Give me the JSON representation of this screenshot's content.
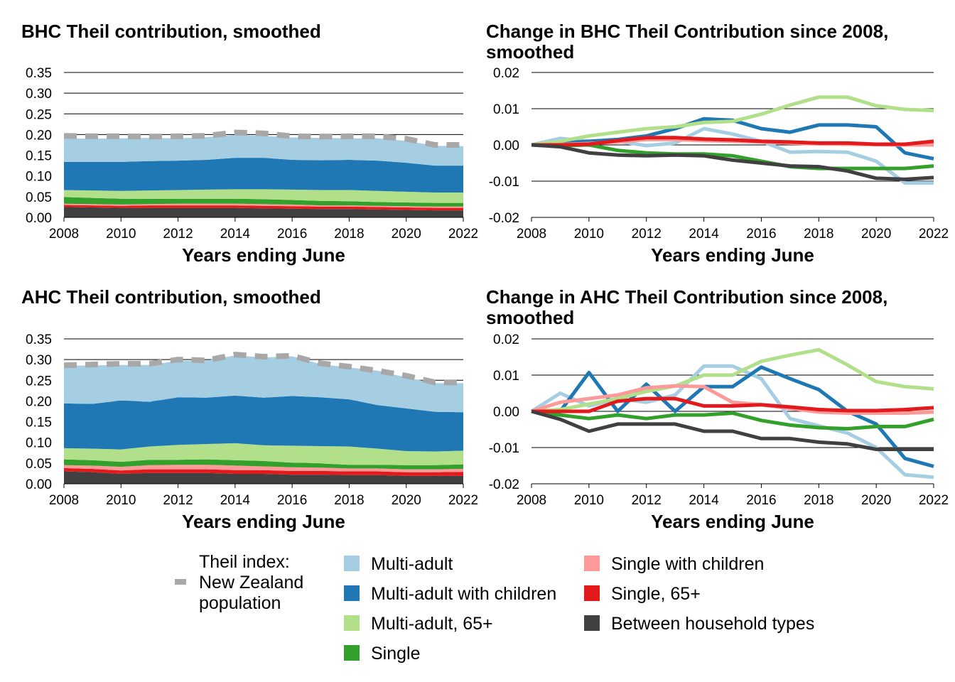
{
  "legend": {
    "theil_line1": "Theil index:",
    "theil_line2": "New Zealand",
    "theil_line3": "population",
    "items": [
      {
        "label": "Multi-adult",
        "color": "#a6cee3"
      },
      {
        "label": "Multi-adult with children",
        "color": "#1f78b4"
      },
      {
        "label": "Multi-adult, 65+",
        "color": "#b2df8a"
      },
      {
        "label": "Single",
        "color": "#33a02c"
      },
      {
        "label": "Single with children",
        "color": "#fb9a99"
      },
      {
        "label": "Single, 65+",
        "color": "#e31a1c"
      },
      {
        "label": "Between household types",
        "color": "#404040"
      }
    ],
    "theil_color": "#a8a8a8"
  },
  "chart_data": [
    {
      "type": "area",
      "title": "BHC Theil contribution, smoothed",
      "xlabel": "Years ending June",
      "ylabel": "",
      "ylim": [
        0,
        0.35
      ],
      "yticks": [
        "0.00",
        "0.05",
        "0.10",
        "0.15",
        "0.20",
        "0.25",
        "0.30",
        "0.35"
      ],
      "xticks": [
        "2008",
        "2010",
        "2012",
        "2014",
        "2016",
        "2018",
        "2020",
        "2022"
      ],
      "grid": "horizontal",
      "x": [
        2008,
        2009,
        2010,
        2011,
        2012,
        2013,
        2014,
        2015,
        2016,
        2017,
        2018,
        2019,
        2020,
        2021,
        2022
      ],
      "series": [
        {
          "name": "Between household types",
          "values": [
            0.025,
            0.024,
            0.023,
            0.023,
            0.023,
            0.023,
            0.023,
            0.022,
            0.021,
            0.02,
            0.02,
            0.019,
            0.018,
            0.017,
            0.017
          ]
        },
        {
          "name": "Single, 65+",
          "values": [
            0.005,
            0.005,
            0.005,
            0.006,
            0.006,
            0.006,
            0.006,
            0.006,
            0.006,
            0.006,
            0.006,
            0.006,
            0.006,
            0.006,
            0.006
          ]
        },
        {
          "name": "Single with children",
          "values": [
            0.003,
            0.003,
            0.003,
            0.003,
            0.004,
            0.004,
            0.004,
            0.004,
            0.004,
            0.003,
            0.003,
            0.003,
            0.003,
            0.003,
            0.003
          ]
        },
        {
          "name": "Single",
          "values": [
            0.016,
            0.015,
            0.014,
            0.013,
            0.012,
            0.012,
            0.012,
            0.012,
            0.011,
            0.011,
            0.01,
            0.009,
            0.009,
            0.009,
            0.009
          ]
        },
        {
          "name": "Multi-adult, 65+",
          "values": [
            0.017,
            0.018,
            0.019,
            0.02,
            0.021,
            0.022,
            0.023,
            0.024,
            0.025,
            0.026,
            0.027,
            0.027,
            0.026,
            0.025,
            0.025
          ]
        },
        {
          "name": "Multi-adult with children",
          "values": [
            0.068,
            0.069,
            0.07,
            0.071,
            0.071,
            0.072,
            0.076,
            0.076,
            0.072,
            0.072,
            0.073,
            0.073,
            0.07,
            0.065,
            0.065
          ]
        },
        {
          "name": "Multi-adult",
          "values": [
            0.057,
            0.056,
            0.057,
            0.056,
            0.054,
            0.055,
            0.055,
            0.053,
            0.054,
            0.054,
            0.052,
            0.054,
            0.053,
            0.048,
            0.047
          ]
        }
      ],
      "total": {
        "name": "Theil index: New Zealand population",
        "values": [
          0.197,
          0.196,
          0.196,
          0.195,
          0.196,
          0.197,
          0.205,
          0.203,
          0.196,
          0.195,
          0.196,
          0.196,
          0.19,
          0.175,
          0.175
        ]
      }
    },
    {
      "type": "line",
      "title": "Change in BHC Theil Contribution since 2008, smoothed",
      "xlabel": "Years ending June",
      "ylabel": "",
      "ylim": [
        -0.02,
        0.02
      ],
      "yticks": [
        "-0.02",
        "-0.01",
        "0.00",
        "0.01",
        "0.02"
      ],
      "xticks": [
        "2008",
        "2010",
        "2012",
        "2014",
        "2016",
        "2018",
        "2020",
        "2022"
      ],
      "grid": "horizontal",
      "x": [
        2008,
        2009,
        2010,
        2011,
        2012,
        2013,
        2014,
        2015,
        2016,
        2017,
        2018,
        2019,
        2020,
        2021,
        2022
      ],
      "series": [
        {
          "name": "Multi-adult",
          "values": [
            0,
            0.0018,
            0.001,
            0.001,
            -0.0002,
            0.0005,
            0.0045,
            0.003,
            0.001,
            -0.002,
            -0.0018,
            -0.002,
            -0.0045,
            -0.0105,
            -0.0105
          ]
        },
        {
          "name": "Multi-adult with children",
          "values": [
            0,
            0.0005,
            0.001,
            0.0015,
            0.0025,
            0.0045,
            0.0072,
            0.0068,
            0.0045,
            0.0035,
            0.0055,
            0.0055,
            0.005,
            -0.0022,
            -0.0038
          ]
        },
        {
          "name": "Multi-adult, 65+",
          "values": [
            0,
            0.001,
            0.0025,
            0.0035,
            0.0045,
            0.005,
            0.0062,
            0.0065,
            0.0085,
            0.011,
            0.0132,
            0.0132,
            0.0108,
            0.0098,
            0.0095
          ]
        },
        {
          "name": "Single",
          "values": [
            0,
            -0.0002,
            0,
            -0.0015,
            -0.0022,
            -0.0025,
            -0.0025,
            -0.003,
            -0.0045,
            -0.006,
            -0.0065,
            -0.0065,
            -0.0065,
            -0.0065,
            -0.0058
          ]
        },
        {
          "name": "Single with children",
          "values": [
            0,
            0.0001,
            0.0004,
            0.0008,
            0.0015,
            0.0015,
            0.0012,
            0.001,
            0.0008,
            0.0005,
            0.0003,
            0.0002,
            0.0001,
            0,
            0
          ]
        },
        {
          "name": "Single, 65+",
          "values": [
            0,
            0,
            0.0002,
            0.0012,
            0.002,
            0.002,
            0.0016,
            0.0014,
            0.001,
            0.0008,
            0.0005,
            0.0005,
            0.0002,
            0.0002,
            0.001
          ]
        },
        {
          "name": "Between household types",
          "values": [
            0,
            -0.0005,
            -0.0022,
            -0.0028,
            -0.003,
            -0.0028,
            -0.003,
            -0.0042,
            -0.005,
            -0.0058,
            -0.006,
            -0.0072,
            -0.0092,
            -0.0095,
            -0.009
          ]
        }
      ]
    },
    {
      "type": "area",
      "title": "AHC Theil contribution, smoothed",
      "xlabel": "Years ending June",
      "ylabel": "",
      "ylim": [
        0,
        0.35
      ],
      "yticks": [
        "0.00",
        "0.05",
        "0.10",
        "0.15",
        "0.20",
        "0.25",
        "0.30",
        "0.35"
      ],
      "xticks": [
        "2008",
        "2010",
        "2012",
        "2014",
        "2016",
        "2018",
        "2020",
        "2022"
      ],
      "grid": "horizontal",
      "x": [
        2008,
        2009,
        2010,
        2011,
        2012,
        2013,
        2014,
        2015,
        2016,
        2017,
        2018,
        2019,
        2020,
        2021,
        2022
      ],
      "series": [
        {
          "name": "Between household types",
          "values": [
            0.03,
            0.028,
            0.024,
            0.026,
            0.026,
            0.026,
            0.024,
            0.024,
            0.022,
            0.022,
            0.021,
            0.021,
            0.019,
            0.019,
            0.019
          ]
        },
        {
          "name": "Single, 65+",
          "values": [
            0.008,
            0.008,
            0.008,
            0.009,
            0.009,
            0.009,
            0.009,
            0.009,
            0.009,
            0.009,
            0.009,
            0.009,
            0.009,
            0.009,
            0.01
          ]
        },
        {
          "name": "Single with children",
          "values": [
            0.007,
            0.008,
            0.009,
            0.01,
            0.011,
            0.011,
            0.011,
            0.009,
            0.009,
            0.008,
            0.007,
            0.007,
            0.007,
            0.007,
            0.007
          ]
        },
        {
          "name": "Single",
          "values": [
            0.014,
            0.013,
            0.012,
            0.013,
            0.012,
            0.013,
            0.013,
            0.013,
            0.011,
            0.01,
            0.009,
            0.009,
            0.01,
            0.01,
            0.011
          ]
        },
        {
          "name": "Multi-adult, 65+",
          "values": [
            0.027,
            0.028,
            0.03,
            0.032,
            0.036,
            0.037,
            0.041,
            0.038,
            0.041,
            0.042,
            0.044,
            0.039,
            0.034,
            0.033,
            0.033
          ]
        },
        {
          "name": "Multi-adult with children",
          "values": [
            0.108,
            0.108,
            0.118,
            0.108,
            0.115,
            0.112,
            0.115,
            0.115,
            0.12,
            0.118,
            0.114,
            0.105,
            0.103,
            0.096,
            0.093
          ]
        },
        {
          "name": "Multi-adult",
          "values": [
            0.091,
            0.093,
            0.086,
            0.089,
            0.088,
            0.09,
            0.097,
            0.097,
            0.096,
            0.08,
            0.077,
            0.083,
            0.075,
            0.069,
            0.07
          ]
        }
      ],
      "total": {
        "name": "Theil index: New Zealand population",
        "values": [
          0.286,
          0.288,
          0.29,
          0.29,
          0.3,
          0.298,
          0.312,
          0.307,
          0.309,
          0.291,
          0.283,
          0.273,
          0.261,
          0.245,
          0.245
        ]
      }
    },
    {
      "type": "line",
      "title": "Change in AHC Theil Contribution since 2008, smoothed",
      "xlabel": "Years ending June",
      "ylabel": "",
      "ylim": [
        -0.02,
        0.02
      ],
      "yticks": [
        "-0.02",
        "-0.01",
        "0.00",
        "0.01",
        "0.02"
      ],
      "xticks": [
        "2008",
        "2010",
        "2012",
        "2014",
        "2016",
        "2018",
        "2020",
        "2022"
      ],
      "grid": "horizontal",
      "x": [
        2008,
        2009,
        2010,
        2011,
        2012,
        2013,
        2014,
        2015,
        2016,
        2017,
        2018,
        2019,
        2020,
        2021,
        2022
      ],
      "series": [
        {
          "name": "Multi-adult",
          "values": [
            0,
            0.005,
            0.0015,
            0.0035,
            0.0025,
            0.0045,
            0.0125,
            0.0125,
            0.009,
            -0.002,
            -0.004,
            -0.006,
            -0.01,
            -0.0175,
            -0.0182
          ]
        },
        {
          "name": "Multi-adult with children",
          "values": [
            0,
            0,
            0.0107,
            0,
            0.0075,
            0,
            0.0068,
            0.0068,
            0.0122,
            0.009,
            0.006,
            0,
            -0.0035,
            -0.013,
            -0.0152
          ]
        },
        {
          "name": "Multi-adult, 65+",
          "values": [
            0,
            0.0005,
            0.002,
            0.0035,
            0.0055,
            0.007,
            0.01,
            0.01,
            0.0138,
            0.0155,
            0.017,
            0.0128,
            0.0082,
            0.0068,
            0.0062
          ]
        },
        {
          "name": "Single",
          "values": [
            0,
            -0.001,
            -0.002,
            -0.001,
            -0.002,
            -0.001,
            -0.001,
            -0.0005,
            -0.0025,
            -0.0038,
            -0.0045,
            -0.0048,
            -0.0042,
            -0.0042,
            -0.0022
          ]
        },
        {
          "name": "Single with children",
          "values": [
            0,
            0.0025,
            0.0035,
            0.0045,
            0.0065,
            0.007,
            0.0068,
            0.0025,
            0.0018,
            0.0008,
            -0.0002,
            -0.0005,
            -0.0005,
            -0.0005,
            -0.0002
          ]
        },
        {
          "name": "Single, 65+",
          "values": [
            0,
            0,
            0,
            0.0028,
            0.0035,
            0.0035,
            0.0015,
            0.0015,
            0.0018,
            0.0012,
            0.0005,
            0.0002,
            0.0002,
            0.0005,
            0.001
          ]
        },
        {
          "name": "Between household types",
          "values": [
            0,
            -0.0022,
            -0.0055,
            -0.0035,
            -0.0035,
            -0.0035,
            -0.0055,
            -0.0055,
            -0.0075,
            -0.0075,
            -0.0085,
            -0.009,
            -0.0105,
            -0.0105,
            -0.0105
          ]
        }
      ]
    }
  ]
}
